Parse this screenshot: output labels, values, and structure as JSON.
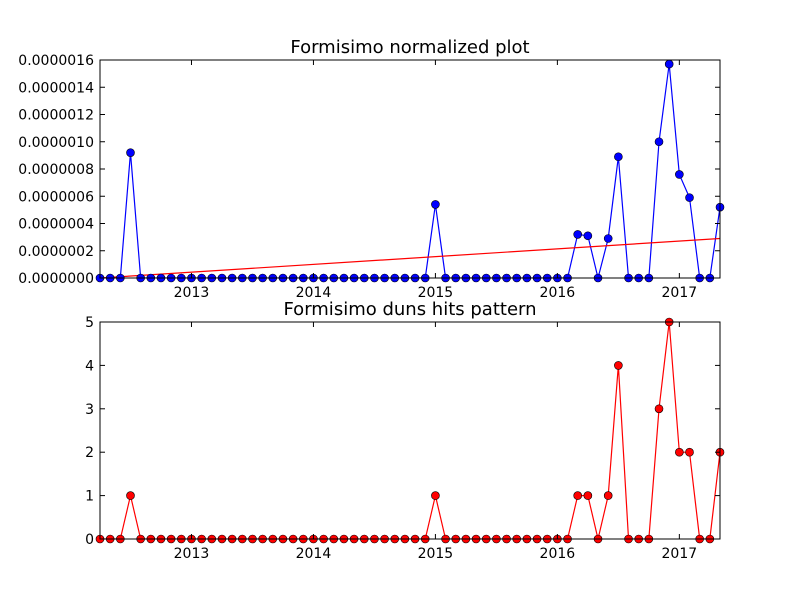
{
  "chart_data": [
    {
      "type": "line",
      "title": "Formisimo normalized plot",
      "x_range": [
        "2012-04",
        "2017-05"
      ],
      "ylim": [
        0,
        1.6e-06
      ],
      "y_ticks": [
        0,
        2e-07,
        4e-07,
        6e-07,
        8e-07,
        1e-06,
        1.2e-06,
        1.4e-06,
        1.6e-06
      ],
      "y_tick_labels": [
        "0.0000000",
        "0.0000002",
        "0.0000004",
        "0.0000006",
        "0.0000008",
        "0.0000010",
        "0.0000012",
        "0.0000014",
        "0.0000016"
      ],
      "x_ticks": [
        "2013-01",
        "2014-01",
        "2015-01",
        "2016-01",
        "2017-01"
      ],
      "x_tick_labels": [
        "2013",
        "2014",
        "2015",
        "2016",
        "2017"
      ],
      "grid": false,
      "series": [
        {
          "color": "#0000ff",
          "marker": "circle",
          "x": [
            "2012-04",
            "2012-05",
            "2012-06",
            "2012-07",
            "2012-08",
            "2012-09",
            "2012-10",
            "2012-11",
            "2012-12",
            "2013-01",
            "2013-02",
            "2013-03",
            "2013-04",
            "2013-05",
            "2013-06",
            "2013-07",
            "2013-08",
            "2013-09",
            "2013-10",
            "2013-11",
            "2013-12",
            "2014-01",
            "2014-02",
            "2014-03",
            "2014-04",
            "2014-05",
            "2014-06",
            "2014-07",
            "2014-08",
            "2014-09",
            "2014-10",
            "2014-11",
            "2014-12",
            "2015-01",
            "2015-02",
            "2015-03",
            "2015-04",
            "2015-05",
            "2015-06",
            "2015-07",
            "2015-08",
            "2015-09",
            "2015-10",
            "2015-11",
            "2015-12",
            "2016-01",
            "2016-02",
            "2016-03",
            "2016-04",
            "2016-05",
            "2016-06",
            "2016-07",
            "2016-08",
            "2016-09",
            "2016-10",
            "2016-11",
            "2016-12",
            "2017-01",
            "2017-02",
            "2017-03",
            "2017-04",
            "2017-05"
          ],
          "y": [
            0,
            0,
            0,
            9.2e-07,
            0,
            0,
            0,
            0,
            0,
            0,
            0,
            0,
            0,
            0,
            0,
            0,
            0,
            0,
            0,
            0,
            0,
            0,
            0,
            0,
            0,
            0,
            0,
            0,
            0,
            0,
            0,
            0,
            0,
            5.4e-07,
            0,
            0,
            0,
            0,
            0,
            0,
            0,
            0,
            0,
            0,
            0,
            0,
            0,
            3.2e-07,
            3.1e-07,
            0,
            2.9e-07,
            8.9e-07,
            0,
            0,
            0,
            1e-06,
            1.57e-06,
            7.6e-07,
            5.9e-07,
            0,
            0,
            5.2e-07
          ]
        },
        {
          "color": "#ff0000",
          "marker": "none",
          "x": [
            "2012-04",
            "2017-05"
          ],
          "y": [
            0,
            2.9e-07
          ]
        }
      ]
    },
    {
      "type": "line",
      "title": "Formisimo duns hits pattern",
      "x_range": [
        "2012-04",
        "2017-05"
      ],
      "ylim": [
        0,
        5
      ],
      "y_ticks": [
        0,
        1,
        2,
        3,
        4,
        5
      ],
      "y_tick_labels": [
        "0",
        "1",
        "2",
        "3",
        "4",
        "5"
      ],
      "x_ticks": [
        "2013-01",
        "2014-01",
        "2015-01",
        "2016-01",
        "2017-01"
      ],
      "x_tick_labels": [
        "2013",
        "2014",
        "2015",
        "2016",
        "2017"
      ],
      "grid": false,
      "series": [
        {
          "color": "#ff0000",
          "marker": "circle",
          "x": [
            "2012-04",
            "2012-05",
            "2012-06",
            "2012-07",
            "2012-08",
            "2012-09",
            "2012-10",
            "2012-11",
            "2012-12",
            "2013-01",
            "2013-02",
            "2013-03",
            "2013-04",
            "2013-05",
            "2013-06",
            "2013-07",
            "2013-08",
            "2013-09",
            "2013-10",
            "2013-11",
            "2013-12",
            "2014-01",
            "2014-02",
            "2014-03",
            "2014-04",
            "2014-05",
            "2014-06",
            "2014-07",
            "2014-08",
            "2014-09",
            "2014-10",
            "2014-11",
            "2014-12",
            "2015-01",
            "2015-02",
            "2015-03",
            "2015-04",
            "2015-05",
            "2015-06",
            "2015-07",
            "2015-08",
            "2015-09",
            "2015-10",
            "2015-11",
            "2015-12",
            "2016-01",
            "2016-02",
            "2016-03",
            "2016-04",
            "2016-05",
            "2016-06",
            "2016-07",
            "2016-08",
            "2016-09",
            "2016-10",
            "2016-11",
            "2016-12",
            "2017-01",
            "2017-02",
            "2017-03",
            "2017-04",
            "2017-05"
          ],
          "y": [
            0,
            0,
            0,
            1,
            0,
            0,
            0,
            0,
            0,
            0,
            0,
            0,
            0,
            0,
            0,
            0,
            0,
            0,
            0,
            0,
            0,
            0,
            0,
            0,
            0,
            0,
            0,
            0,
            0,
            0,
            0,
            0,
            0,
            1,
            0,
            0,
            0,
            0,
            0,
            0,
            0,
            0,
            0,
            0,
            0,
            0,
            0,
            1,
            1,
            0,
            1,
            4,
            0,
            0,
            0,
            3,
            5,
            2,
            2,
            0,
            0,
            2
          ]
        }
      ]
    }
  ]
}
